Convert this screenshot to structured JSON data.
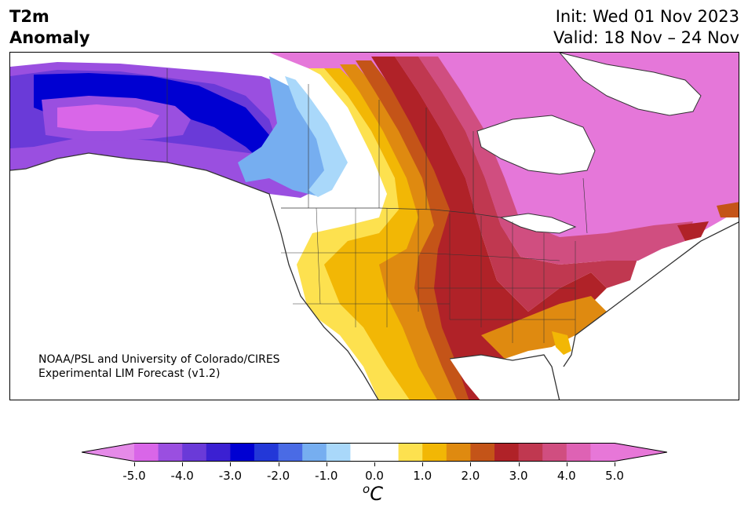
{
  "title": {
    "line1": "T2m",
    "line2": "Anomaly"
  },
  "header": {
    "init": "Init: Wed 01 Nov 2023",
    "valid": "Valid: 18 Nov – 24 Nov"
  },
  "credit": {
    "line1": "NOAA/PSL and University of Colorado/CIRES",
    "line2": "Experimental LIM Forecast (v1.2)"
  },
  "colorbar": {
    "unit_prefix": "o",
    "unit_main": "C",
    "tick_labels": [
      "-5.0",
      "-4.0",
      "-3.0",
      "-2.0",
      "-1.0",
      "0.0",
      "1.0",
      "2.0",
      "3.0",
      "4.0",
      "5.0"
    ],
    "colors": [
      "#d966e8",
      "#9a4fe0",
      "#6a3ad8",
      "#3b20d2",
      "#0000d2",
      "#2338d8",
      "#4a6be5",
      "#76aef0",
      "#a9d8fa",
      "#ffffff",
      "#ffffff",
      "#fde14f",
      "#f2b705",
      "#df8a10",
      "#c45418",
      "#b02228",
      "#c03850",
      "#d04e80",
      "#de62b4",
      "#e777d8"
    ],
    "extend_colors": {
      "low": "#e58ae8",
      "high": "#e777d8"
    }
  },
  "map_colors": {
    "ocean": "#ffffff",
    "coast": "#333333",
    "strong_warm": "#e577d9",
    "warm5": "#d04e80",
    "warm4": "#c03850",
    "warm3": "#b02228",
    "warm2": "#c45418",
    "warm1": "#df8a10",
    "warm0": "#f2b705",
    "light_warm": "#fde14f",
    "cold1": "#a9d8fa",
    "cold2": "#76aef0",
    "cold3": "#4a6be5",
    "cold4": "#0000d2",
    "cold5": "#6a3ad8",
    "cold6": "#9a4fe0",
    "cold7": "#d966e8"
  }
}
